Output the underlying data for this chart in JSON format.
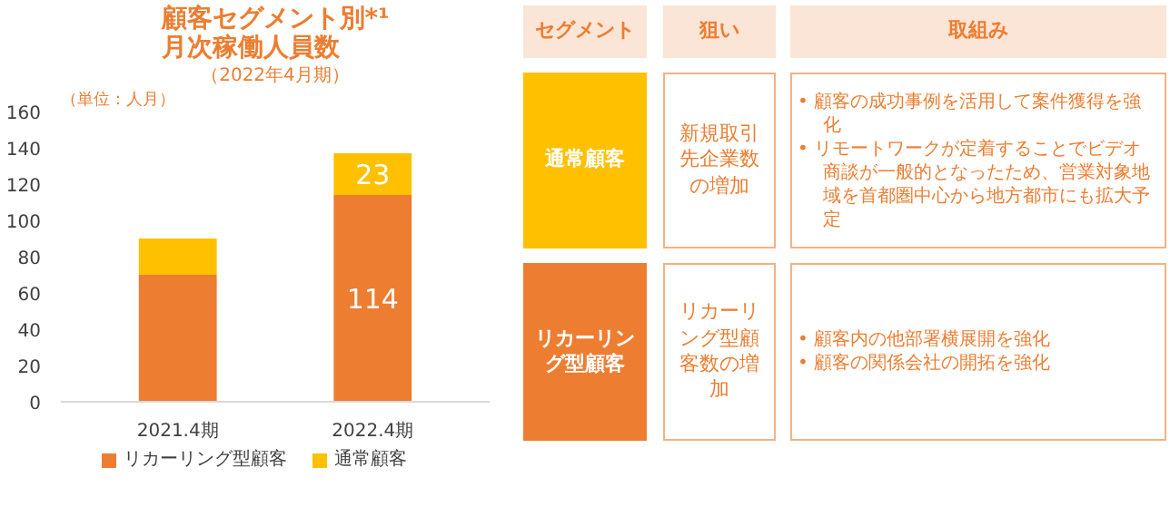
{
  "chart_data": [
    {
      "type": "bar",
      "title": "顧客セグメント別*¹\n月次稼働人員数",
      "subtitle": "（2022年4月期）",
      "ylabel": "（単位：人月）",
      "categories": [
        "2021.4期",
        "2022.4期"
      ],
      "stacked": true,
      "ylim": [
        0,
        160
      ],
      "yticks": [
        0,
        20,
        40,
        60,
        80,
        100,
        120,
        140,
        160
      ],
      "grid": false,
      "legend": "bottom",
      "series": [
        {
          "name": "リカーリング型顧客",
          "color": "#ed7d31",
          "values": [
            70,
            114
          ],
          "value_labels": [
            null,
            "114"
          ]
        },
        {
          "name": "通常顧客",
          "color": "#ffc000",
          "values": [
            20,
            23
          ],
          "value_labels": [
            null,
            "23"
          ]
        }
      ]
    },
    {
      "type": "other",
      "colors": [
        "#fbe5d6",
        "#ffc000",
        "#ed7d31"
      ],
      "annotations": [
        "セグメント",
        "狙い",
        "取組み",
        "通常顧客",
        "新規取引先企業数の増加",
        "• 顧客の成功事例を活用して案件獲得を強化\n• リモートワークが定着することでビデオ商談が一般的となったため、営業対象地域を首都圏中心から地方都市にも拡大予定",
        "リカーリング型顧客",
        "リカーリング型顧客数の増加",
        "• 顧客内の他部署横展開を強化\n• 顧客の関係会社の開拓を強化"
      ]
    }
  ]
}
